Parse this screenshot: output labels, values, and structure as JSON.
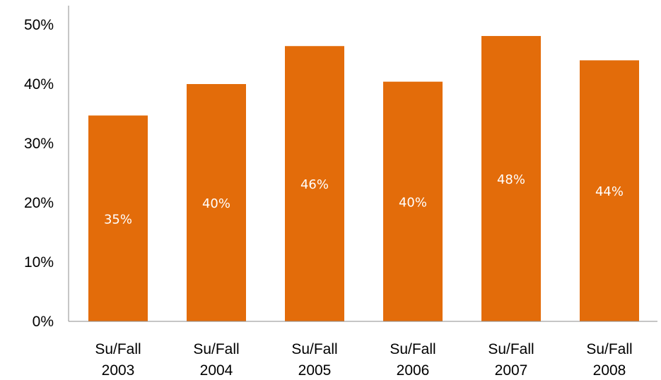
{
  "chart_data": {
    "type": "bar",
    "categories": [
      [
        "Su/Fall",
        "2003"
      ],
      [
        "Su/Fall",
        "2004"
      ],
      [
        "Su/Fall",
        "2005"
      ],
      [
        "Su/Fall",
        "2006"
      ],
      [
        "Su/Fall",
        "2007"
      ],
      [
        "Su/Fall",
        "2008"
      ]
    ],
    "values": [
      34.7,
      40.0,
      46.4,
      40.4,
      48.1,
      44.0
    ],
    "data_labels": [
      "35%",
      "40%",
      "46%",
      "40%",
      "48%",
      "44%"
    ],
    "y_ticks": [
      0,
      10,
      20,
      30,
      40,
      50
    ],
    "y_tick_labels": [
      "0%",
      "10%",
      "20%",
      "30%",
      "40%",
      "50%"
    ],
    "ylim": [
      0,
      50
    ],
    "grid": false,
    "legend": "none",
    "bar_color": "#e36c0a",
    "title": "",
    "xlabel": "",
    "ylabel": ""
  }
}
